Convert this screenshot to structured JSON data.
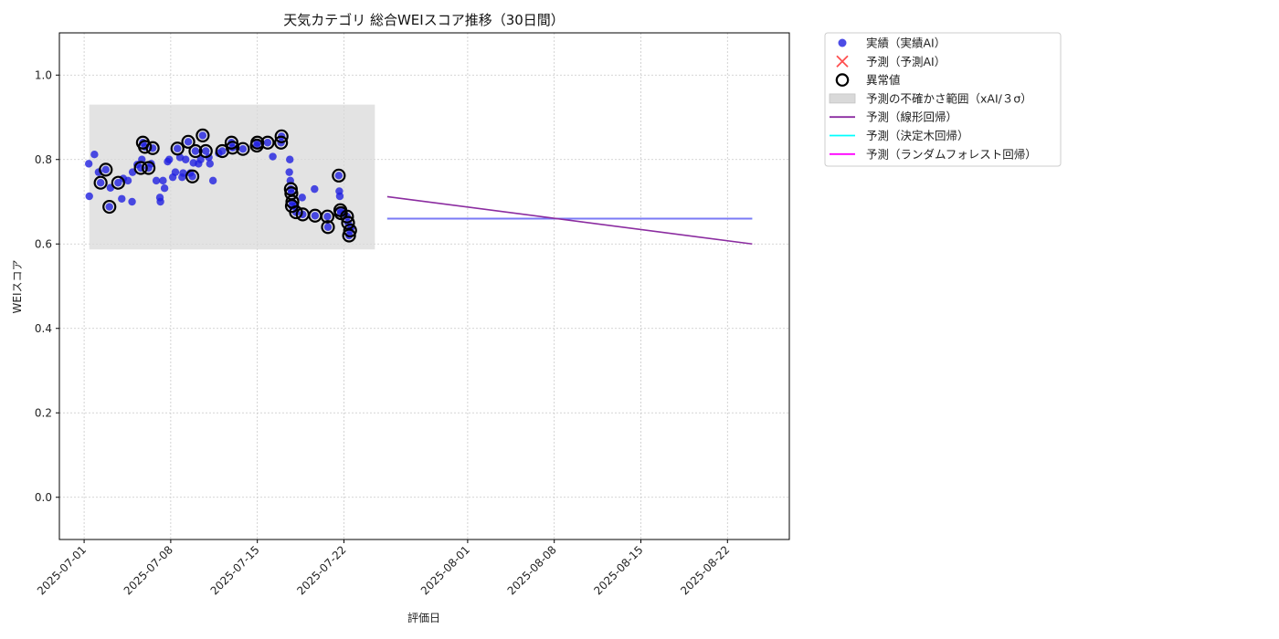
{
  "chart_data": {
    "type": "scatter",
    "title": "天気カテゴリ 総合WEIスコア推移（30日間）",
    "xlabel": "評価日",
    "ylabel": "WEIスコア",
    "ylim": [
      -0.1,
      1.1
    ],
    "yticks": [
      "0.0",
      "0.2",
      "0.4",
      "0.6",
      "0.8",
      "1.0"
    ],
    "xlim": [
      "2025-06-29",
      "2025-08-27"
    ],
    "xticks": [
      "2025-07-01",
      "2025-07-08",
      "2025-07-15",
      "2025-07-22",
      "2025-08-01",
      "2025-08-08",
      "2025-08-15",
      "2025-08-22"
    ],
    "grid": true,
    "legend_position": "outside-top-right",
    "colors": {
      "actual": "#1f1fe0",
      "predicted": "#ff3030",
      "anomaly": "#000000",
      "band": "#d9d9d9",
      "linear": "#8b2ca0",
      "tree": "#00ffff",
      "forest": "#ff00ff",
      "flat_overlap": "#7f6cf5"
    },
    "legend": [
      {
        "key": "actual",
        "label": "実績（実績AI）",
        "marker": "dot"
      },
      {
        "key": "predicted",
        "label": "予測（予測AI）",
        "marker": "x"
      },
      {
        "key": "anomaly",
        "label": "異常値",
        "marker": "ring"
      },
      {
        "key": "band",
        "label": "予測の不確かさ範囲（xAI/３σ）",
        "marker": "band"
      },
      {
        "key": "linear",
        "label": "予測（線形回帰）",
        "marker": "line"
      },
      {
        "key": "tree",
        "label": "予測（決定木回帰）",
        "marker": "line"
      },
      {
        "key": "forest",
        "label": "予測（ランダムフォレスト回帰）",
        "marker": "line"
      }
    ],
    "band": {
      "x": [
        "2025-07-01 10:00",
        "2025-07-24 12:00"
      ],
      "y": [
        0.587,
        0.93
      ]
    },
    "series": [
      {
        "name": "実績（実績AI）",
        "points": [
          [
            "2025-07-01 09:00",
            0.79
          ],
          [
            "2025-07-01 10:00",
            0.713
          ],
          [
            "2025-07-01 20:00",
            0.812
          ],
          [
            "2025-07-02 04:00",
            0.77
          ],
          [
            "2025-07-02 08:00",
            0.745
          ],
          [
            "2025-07-02 18:00",
            0.776
          ],
          [
            "2025-07-03 01:00",
            0.688
          ],
          [
            "2025-07-03 03:00",
            0.733
          ],
          [
            "2025-07-03 18:00",
            0.745
          ],
          [
            "2025-07-04 01:00",
            0.707
          ],
          [
            "2025-07-04 04:00",
            0.755
          ],
          [
            "2025-07-04 13:00",
            0.75
          ],
          [
            "2025-07-04 21:00",
            0.7
          ],
          [
            "2025-07-04 22:00",
            0.77
          ],
          [
            "2025-07-05 07:00",
            0.788
          ],
          [
            "2025-07-05 14:00",
            0.78
          ],
          [
            "2025-07-05 16:00",
            0.8
          ],
          [
            "2025-07-05 18:00",
            0.84
          ],
          [
            "2025-07-05 22:00",
            0.83
          ],
          [
            "2025-07-06 05:00",
            0.78
          ],
          [
            "2025-07-06 10:00",
            0.79
          ],
          [
            "2025-07-06 13:00",
            0.827
          ],
          [
            "2025-07-06 20:00",
            0.75
          ],
          [
            "2025-07-07 03:00",
            0.71
          ],
          [
            "2025-07-07 04:00",
            0.7
          ],
          [
            "2025-07-07 09:00",
            0.75
          ],
          [
            "2025-07-07 12:00",
            0.732
          ],
          [
            "2025-07-07 18:00",
            0.795
          ],
          [
            "2025-07-07 21:00",
            0.8
          ],
          [
            "2025-07-08 04:00",
            0.758
          ],
          [
            "2025-07-08 09:00",
            0.77
          ],
          [
            "2025-07-08 13:00",
            0.826
          ],
          [
            "2025-07-08 18:00",
            0.805
          ],
          [
            "2025-07-08 22:00",
            0.758
          ],
          [
            "2025-07-09 00:00",
            0.768
          ],
          [
            "2025-07-09 05:00",
            0.8
          ],
          [
            "2025-07-09 10:00",
            0.842
          ],
          [
            "2025-07-09 14:00",
            0.768
          ],
          [
            "2025-07-09 18:00",
            0.76
          ],
          [
            "2025-07-09 20:00",
            0.792
          ],
          [
            "2025-07-10 00:00",
            0.82
          ],
          [
            "2025-07-10 06:00",
            0.79
          ],
          [
            "2025-07-10 10:00",
            0.8
          ],
          [
            "2025-07-10 14:00",
            0.857
          ],
          [
            "2025-07-10 20:00",
            0.82
          ],
          [
            "2025-07-11 02:00",
            0.805
          ],
          [
            "2025-07-11 04:00",
            0.79
          ],
          [
            "2025-07-11 10:00",
            0.75
          ],
          [
            "2025-07-11 21:00",
            0.815
          ],
          [
            "2025-07-12 04:00",
            0.82
          ],
          [
            "2025-07-12 22:00",
            0.84
          ],
          [
            "2025-07-13 00:00",
            0.828
          ],
          [
            "2025-07-13 20:00",
            0.825
          ],
          [
            "2025-07-14 23:00",
            0.833
          ],
          [
            "2025-07-15 00:00",
            0.84
          ],
          [
            "2025-07-15 20:00",
            0.84
          ],
          [
            "2025-07-16 06:00",
            0.807
          ],
          [
            "2025-07-16 22:00",
            0.84
          ],
          [
            "2025-07-16 23:00",
            0.855
          ],
          [
            "2025-07-17 14:00",
            0.77
          ],
          [
            "2025-07-17 15:00",
            0.8
          ],
          [
            "2025-07-17 16:00",
            0.75
          ],
          [
            "2025-07-17 17:00",
            0.73
          ],
          [
            "2025-07-17 18:00",
            0.72
          ],
          [
            "2025-07-17 19:00",
            0.69
          ],
          [
            "2025-07-17 20:00",
            0.7
          ],
          [
            "2025-07-18 02:00",
            0.69
          ],
          [
            "2025-07-18 03:00",
            0.675
          ],
          [
            "2025-07-18 15:00",
            0.71
          ],
          [
            "2025-07-18 16:00",
            0.67
          ],
          [
            "2025-07-19 15:00",
            0.73
          ],
          [
            "2025-07-19 16:00",
            0.667
          ],
          [
            "2025-07-20 16:00",
            0.665
          ],
          [
            "2025-07-20 17:00",
            0.64
          ],
          [
            "2025-07-21 14:00",
            0.762
          ],
          [
            "2025-07-21 15:00",
            0.725
          ],
          [
            "2025-07-21 16:00",
            0.713
          ],
          [
            "2025-07-21 17:00",
            0.68
          ],
          [
            "2025-07-21 18:00",
            0.673
          ],
          [
            "2025-07-22 00:00",
            0.672
          ],
          [
            "2025-07-22 06:00",
            0.665
          ],
          [
            "2025-07-22 08:00",
            0.65
          ],
          [
            "2025-07-22 10:00",
            0.62
          ],
          [
            "2025-07-22 12:00",
            0.632
          ],
          [
            "2025-07-22 14:00",
            0.64
          ]
        ]
      },
      {
        "name": "異常値",
        "points": [
          [
            "2025-07-02 08:00",
            0.745
          ],
          [
            "2025-07-02 18:00",
            0.776
          ],
          [
            "2025-07-03 01:00",
            0.688
          ],
          [
            "2025-07-03 18:00",
            0.745
          ],
          [
            "2025-07-05 14:00",
            0.78
          ],
          [
            "2025-07-05 18:00",
            0.84
          ],
          [
            "2025-07-05 22:00",
            0.83
          ],
          [
            "2025-07-06 05:00",
            0.78
          ],
          [
            "2025-07-06 13:00",
            0.827
          ],
          [
            "2025-07-08 13:00",
            0.826
          ],
          [
            "2025-07-09 10:00",
            0.842
          ],
          [
            "2025-07-09 18:00",
            0.76
          ],
          [
            "2025-07-10 00:00",
            0.82
          ],
          [
            "2025-07-10 14:00",
            0.857
          ],
          [
            "2025-07-10 20:00",
            0.82
          ],
          [
            "2025-07-12 04:00",
            0.82
          ],
          [
            "2025-07-12 22:00",
            0.84
          ],
          [
            "2025-07-13 00:00",
            0.828
          ],
          [
            "2025-07-13 20:00",
            0.825
          ],
          [
            "2025-07-14 23:00",
            0.833
          ],
          [
            "2025-07-15 00:00",
            0.84
          ],
          [
            "2025-07-15 20:00",
            0.84
          ],
          [
            "2025-07-16 22:00",
            0.84
          ],
          [
            "2025-07-16 23:00",
            0.855
          ],
          [
            "2025-07-17 17:00",
            0.73
          ],
          [
            "2025-07-17 18:00",
            0.72
          ],
          [
            "2025-07-17 19:00",
            0.69
          ],
          [
            "2025-07-17 20:00",
            0.7
          ],
          [
            "2025-07-18 03:00",
            0.675
          ],
          [
            "2025-07-18 16:00",
            0.67
          ],
          [
            "2025-07-19 16:00",
            0.667
          ],
          [
            "2025-07-20 16:00",
            0.665
          ],
          [
            "2025-07-20 17:00",
            0.64
          ],
          [
            "2025-07-21 14:00",
            0.762
          ],
          [
            "2025-07-21 17:00",
            0.68
          ],
          [
            "2025-07-21 18:00",
            0.673
          ],
          [
            "2025-07-22 06:00",
            0.665
          ],
          [
            "2025-07-22 08:00",
            0.65
          ],
          [
            "2025-07-22 10:00",
            0.62
          ],
          [
            "2025-07-22 12:00",
            0.632
          ]
        ]
      },
      {
        "name": "予測（線形回帰）",
        "points": [
          [
            "2025-07-25 12:00",
            0.712
          ],
          [
            "2025-08-24 00:00",
            0.6
          ]
        ]
      },
      {
        "name": "予測（決定木回帰）",
        "points": [
          [
            "2025-07-25 12:00",
            0.66
          ],
          [
            "2025-08-24 00:00",
            0.66
          ]
        ]
      },
      {
        "name": "予測（ランダムフォレスト回帰）",
        "points": [
          [
            "2025-07-25 12:00",
            0.66
          ],
          [
            "2025-08-24 00:00",
            0.66
          ]
        ]
      }
    ]
  }
}
